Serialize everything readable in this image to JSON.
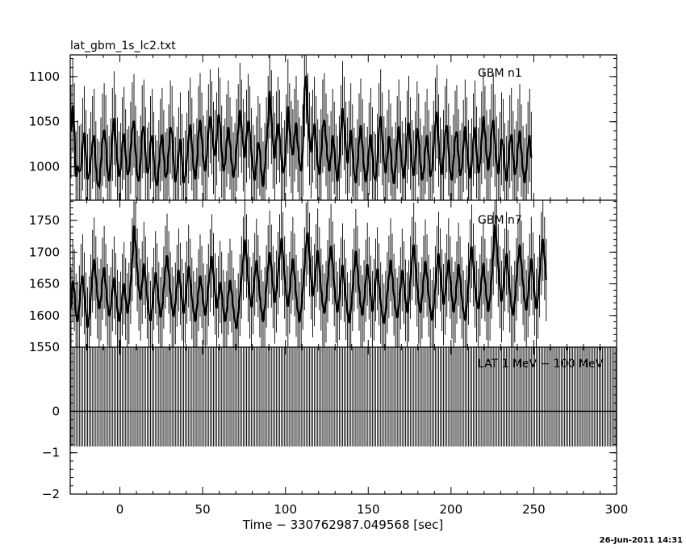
{
  "chart_data": {
    "type": "line",
    "title": "lat_gbm_1s_lc2.txt",
    "xlabel": "Time − 330762987.049568 [sec]",
    "xlim": [
      -30,
      300
    ],
    "xticks": [
      0,
      50,
      100,
      150,
      200,
      250,
      300
    ],
    "footer_date": "26-Jun-2011 14:31",
    "panels": [
      {
        "label": "GBM n1",
        "ylim": [
          963,
          1124
        ],
        "yticks": [
          1000,
          1050,
          1100
        ],
        "series": {
          "x_start": -29.5,
          "x_step": 1,
          "values": [
            1039,
            1068,
            1041,
            989,
            1001,
            995,
            997,
            1025,
            1038,
            1012,
            986,
            992,
            1010,
            1027,
            1035,
            1000,
            981,
            978,
            1004,
            1030,
            1041,
            1028,
            996,
            984,
            1003,
            1036,
            1054,
            1029,
            1004,
            989,
            998,
            1026,
            1037,
            1013,
            991,
            995,
            1021,
            1042,
            1051,
            1017,
            990,
            984,
            1006,
            1039,
            1045,
            1015,
            993,
            999,
            1027,
            1035,
            1010,
            985,
            979,
            1001,
            1024,
            1036,
            1012,
            988,
            992,
            1018,
            1044,
            1038,
            1005,
            983,
            994,
            1015,
            1031,
            1008,
            982,
            990,
            1009,
            1033,
            1047,
            1025,
            998,
            986,
            1003,
            1038,
            1052,
            1031,
            1006,
            995,
            1012,
            1040,
            1056,
            1043,
            1021,
            1012,
            1031,
            1058,
            1047,
            1017,
            995,
            1003,
            1029,
            1044,
            1026,
            1005,
            988,
            998,
            1024,
            1040,
            1063,
            1045,
            1024,
            1010,
            1034,
            1051,
            1038,
            1014,
            996,
            985,
            1005,
            1027,
            1019,
            993,
            978,
            998,
            1026,
            1049,
            1084,
            1055,
            1027,
            1009,
            1032,
            1048,
            1034,
            1010,
            993,
            1001,
            1029,
            1067,
            1041,
            1022,
            1013,
            1035,
            1049,
            1023,
            1004,
            995,
            1018,
            1086,
            1101,
            1052,
            1031,
            1016,
            1034,
            1048,
            1027,
            1002,
            991,
            1013,
            1045,
            1052,
            1030,
            1008,
            995,
            1011,
            1035,
            1021,
            997,
            984,
            1006,
            1039,
            1065,
            1048,
            1021,
            1004,
            1022,
            1041,
            1018,
            993,
            982,
            1002,
            1030,
            1046,
            1024,
            998,
            983,
            994,
            1020,
            1036,
            1015,
            989,
            986,
            1008,
            1041,
            1056,
            1031,
            1005,
            993,
            1012,
            1034,
            1019,
            994,
            981,
            999,
            1027,
            1045,
            1022,
            1000,
            987,
            1004,
            1033,
            1049,
            1026,
            1001,
            990,
            1011,
            1043,
            1030,
            1003,
            985,
            995,
            1021,
            1035,
            1012,
            989,
            996,
            1022,
            1047,
            1061,
            1029,
            1004,
            991,
            1012,
            1038,
            1046,
            1019,
            995,
            985,
            1007,
            1033,
            1039,
            1013,
            990,
            998,
            1023,
            1045,
            1026,
            1001,
            987,
            1003,
            1030,
            1044,
            1016,
            993,
            1004,
            1032,
            1056,
            1038,
            1012,
            996,
            1013,
            1040,
            1052,
            1029,
            1005,
            992,
            1010,
            1031,
            1024,
            998,
            984,
            1001,
            1028,
            1036,
            1011,
            991,
            1000,
            1024,
            1040,
            1018,
            995,
            982,
            997,
            1021,
            1035,
            1010
          ]
        }
      },
      {
        "label": "GBM n7",
        "ylim": [
          1550,
          1782
        ],
        "yticks": [
          1550,
          1600,
          1650,
          1700,
          1750
        ],
        "series": {
          "x_start": -29.5,
          "x_step": 1,
          "values": [
            1612,
            1655,
            1640,
            1602,
            1590,
            1615,
            1648,
            1663,
            1635,
            1604,
            1581,
            1598,
            1632,
            1670,
            1689,
            1660,
            1628,
            1610,
            1625,
            1658,
            1676,
            1648,
            1617,
            1599,
            1612,
            1640,
            1660,
            1634,
            1608,
            1590,
            1605,
            1633,
            1651,
            1626,
            1603,
            1619,
            1652,
            1688,
            1742,
            1713,
            1672,
            1641,
            1625,
            1652,
            1682,
            1660,
            1628,
            1604,
            1591,
            1612,
            1642,
            1668,
            1649,
            1620,
            1597,
            1612,
            1644,
            1676,
            1695,
            1668,
            1636,
            1612,
            1598,
            1619,
            1647,
            1672,
            1650,
            1625,
            1603,
            1620,
            1652,
            1678,
            1656,
            1627,
            1606,
            1590,
            1611,
            1640,
            1663,
            1645,
            1618,
            1600,
            1617,
            1648,
            1671,
            1694,
            1665,
            1634,
            1611,
            1629,
            1653,
            1636,
            1608,
            1590,
            1606,
            1634,
            1656,
            1638,
            1611,
            1592,
            1579,
            1603,
            1632,
            1660,
            1690,
            1720,
            1694,
            1655,
            1628,
            1613,
            1635,
            1665,
            1687,
            1662,
            1630,
            1608,
            1590,
            1612,
            1646,
            1677,
            1700,
            1678,
            1645,
            1620,
            1638,
            1667,
            1694,
            1722,
            1697,
            1660,
            1632,
            1614,
            1636,
            1668,
            1690,
            1664,
            1631,
            1607,
            1589,
            1610,
            1642,
            1674,
            1712,
            1731,
            1696,
            1659,
            1630,
            1648,
            1679,
            1703,
            1674,
            1641,
            1616,
            1603,
            1622,
            1654,
            1688,
            1710,
            1683,
            1648,
            1621,
            1605,
            1626,
            1658,
            1680,
            1655,
            1626,
            1604,
            1588,
            1608,
            1640,
            1672,
            1702,
            1676,
            1641,
            1615,
            1600,
            1623,
            1655,
            1681,
            1659,
            1630,
            1606,
            1625,
            1656,
            1674,
            1649,
            1620,
            1601,
            1587,
            1606,
            1636,
            1661,
            1688,
            1664,
            1633,
            1610,
            1596,
            1614,
            1643,
            1672,
            1652,
            1624,
            1604,
            1623,
            1660,
            1690,
            1712,
            1682,
            1647,
            1620,
            1604,
            1628,
            1661,
            1686,
            1663,
            1631,
            1609,
            1592,
            1612,
            1645,
            1676,
            1698,
            1672,
            1640,
            1617,
            1634,
            1663,
            1688,
            1660,
            1628,
            1605,
            1621,
            1652,
            1681,
            1660,
            1628,
            1607,
            1592,
            1615,
            1650,
            1686,
            1709,
            1680,
            1646,
            1622,
            1610,
            1632,
            1660,
            1683,
            1656,
            1626,
            1606,
            1625,
            1660,
            1698,
            1744,
            1716,
            1679,
            1645,
            1622,
            1641,
            1672,
            1698,
            1670,
            1638,
            1614,
            1600,
            1622,
            1657,
            1688,
            1712,
            1684,
            1650,
            1624,
            1608,
            1630,
            1664,
            1690,
            1666,
            1633,
            1610,
            1628,
            1662,
            1698,
            1721,
            1690,
            1656
          ]
        }
      },
      {
        "label": "LAT 1 MeV − 100 MeV",
        "ylim": [
          -2,
          1.55
        ],
        "yticks": [
          -2,
          -1,
          0
        ],
        "series": {
          "x_start": -29.5,
          "x_step": 1,
          "baseline": 0,
          "err_high": 1.55,
          "err_low": -0.85
        }
      }
    ]
  }
}
